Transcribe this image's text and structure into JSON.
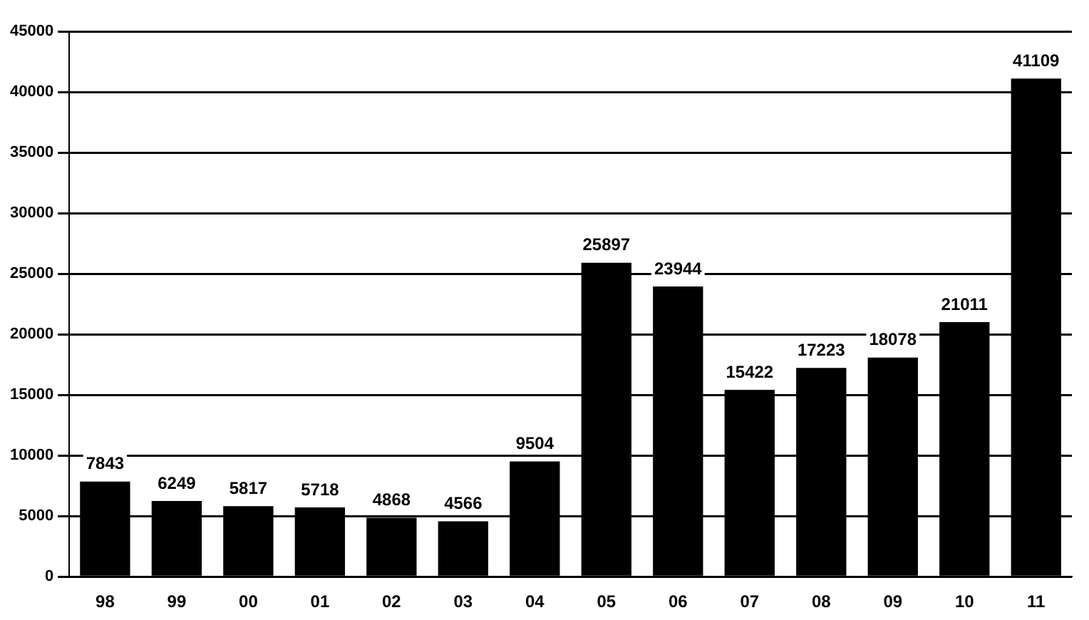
{
  "chart_data": {
    "type": "bar",
    "categories": [
      "98",
      "99",
      "00",
      "01",
      "02",
      "03",
      "04",
      "05",
      "06",
      "07",
      "08",
      "09",
      "10",
      "11"
    ],
    "values": [
      7843,
      6249,
      5817,
      5718,
      4868,
      4566,
      9504,
      25897,
      23944,
      15422,
      17223,
      18078,
      21011,
      41109
    ],
    "color": "#000000",
    "ylim": [
      0,
      45000
    ],
    "yticks": [
      0,
      5000,
      10000,
      15000,
      20000,
      25000,
      30000,
      35000,
      40000,
      45000
    ],
    "grid": "y",
    "legend": false,
    "data_labels": true
  }
}
